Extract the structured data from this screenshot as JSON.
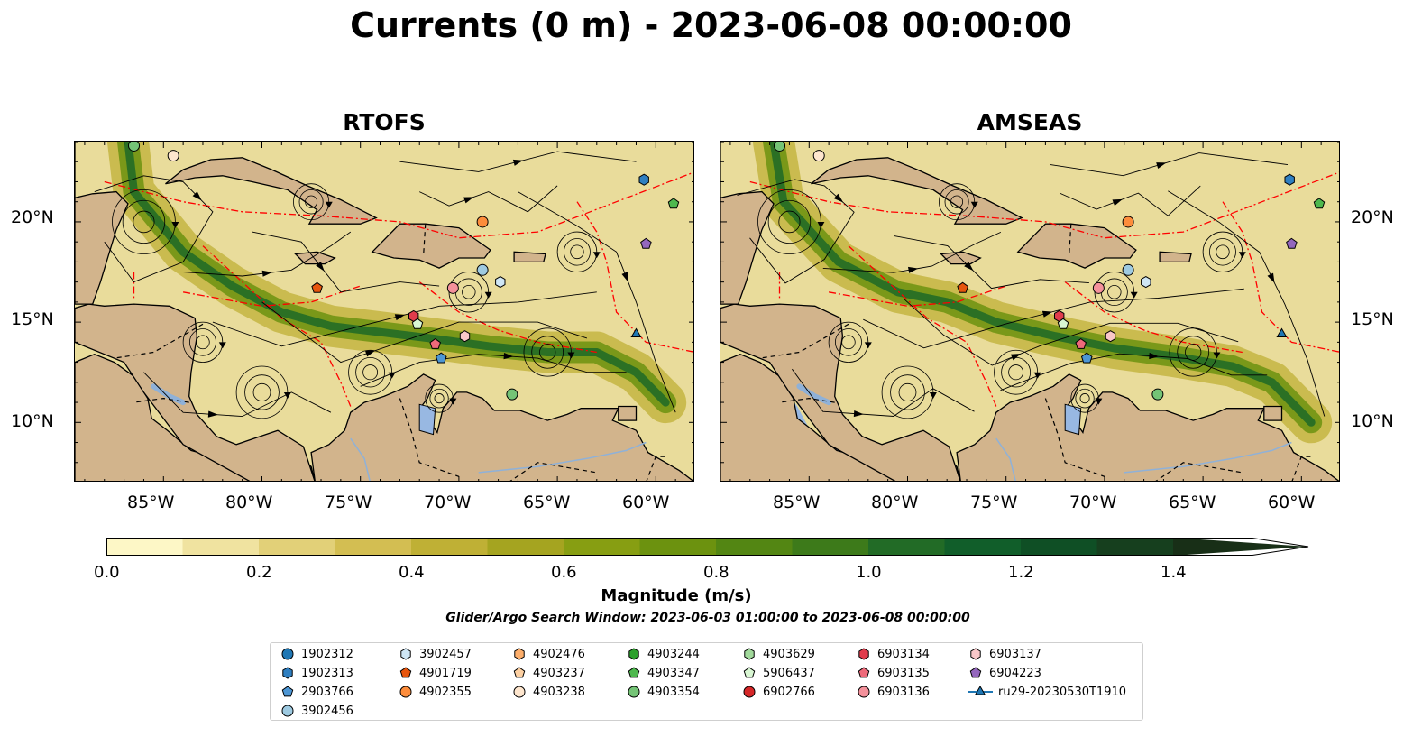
{
  "title": "Currents (0 m) - 2023-06-08 00:00:00",
  "panels": [
    {
      "title": "RTOFS"
    },
    {
      "title": "AMSEAS"
    }
  ],
  "axes": {
    "x_ticks": [
      "85°W",
      "80°W",
      "75°W",
      "70°W",
      "65°W",
      "60°W"
    ],
    "y_ticks": [
      "20°N",
      "15°N",
      "10°N"
    ],
    "lon_range": [
      -89.5,
      -58.0
    ],
    "lat_range": [
      7.0,
      24.0
    ]
  },
  "colorbar": {
    "label": "Magnitude (m/s)",
    "ticks": [
      "0.0",
      "0.2",
      "0.4",
      "0.6",
      "0.8",
      "1.0",
      "1.2",
      "1.4"
    ],
    "range": [
      0.0,
      1.5
    ],
    "extend": "max",
    "colors": [
      "#fdf7c6",
      "#f0e3a0",
      "#e2d078",
      "#d3be52",
      "#bfb035",
      "#a5a420",
      "#879e12",
      "#6c920f",
      "#538613",
      "#3d7a1a",
      "#226b26",
      "#115e2a",
      "#0f4f25",
      "#163f1e",
      "#182f17"
    ]
  },
  "search_window": "Glider/Argo Search Window: 2023-06-03 01:00:00 to 2023-06-08 00:00:00",
  "legend": [
    {
      "label": "1902312",
      "marker": "circle",
      "color": "#1f77b4"
    },
    {
      "label": "1902313",
      "marker": "hexagon",
      "color": "#2f7fc1"
    },
    {
      "label": "2903766",
      "marker": "pentagon",
      "color": "#4d96d4"
    },
    {
      "label": "3902456",
      "marker": "circle",
      "color": "#9ecae1"
    },
    {
      "label": "3902457",
      "marker": "hexagon",
      "color": "#cfe6f5"
    },
    {
      "label": "4901719",
      "marker": "pentagon",
      "color": "#e6550d"
    },
    {
      "label": "4902355",
      "marker": "circle",
      "color": "#fd8d3c"
    },
    {
      "label": "4902476",
      "marker": "hexagon",
      "color": "#fdae6b"
    },
    {
      "label": "4903237",
      "marker": "pentagon",
      "color": "#fdd0a2"
    },
    {
      "label": "4903238",
      "marker": "circle",
      "color": "#fee6ce"
    },
    {
      "label": "4903244",
      "marker": "hexagon",
      "color": "#2ca02c"
    },
    {
      "label": "4903347",
      "marker": "pentagon",
      "color": "#4eb84e"
    },
    {
      "label": "4903354",
      "marker": "circle",
      "color": "#74c476"
    },
    {
      "label": "4903629",
      "marker": "hexagon",
      "color": "#a1d99b"
    },
    {
      "label": "5906437",
      "marker": "pentagon",
      "color": "#d9f7d3"
    },
    {
      "label": "6902766",
      "marker": "circle",
      "color": "#d62728"
    },
    {
      "label": "6903134",
      "marker": "hexagon",
      "color": "#e03c4c"
    },
    {
      "label": "6903135",
      "marker": "pentagon",
      "color": "#ee6a7a"
    },
    {
      "label": "6903136",
      "marker": "circle",
      "color": "#f4919b"
    },
    {
      "label": "6903137",
      "marker": "hexagon",
      "color": "#f9c7c9"
    },
    {
      "label": "6904223",
      "marker": "pentagon",
      "color": "#9467bd"
    },
    {
      "label": "ru29-20230530T1910",
      "marker": "triangle-line",
      "color": "#1f77b4"
    }
  ],
  "floats": [
    {
      "id": "4903354",
      "lon": -86.5,
      "lat": 23.8
    },
    {
      "id": "4903238",
      "lon": -84.5,
      "lat": 23.3
    },
    {
      "id": "1902313",
      "lon": -60.6,
      "lat": 22.1
    },
    {
      "id": "4903347",
      "lon": -59.1,
      "lat": 20.9
    },
    {
      "id": "4902355",
      "lon": -68.8,
      "lat": 20.0
    },
    {
      "id": "6904223",
      "lon": -60.5,
      "lat": 18.9
    },
    {
      "id": "3902456",
      "lon": -68.8,
      "lat": 17.6
    },
    {
      "id": "3902457",
      "lon": -67.9,
      "lat": 17.0
    },
    {
      "id": "4901719",
      "lon": -77.2,
      "lat": 16.7
    },
    {
      "id": "6903136",
      "lon": -70.3,
      "lat": 16.7
    },
    {
      "id": "6903134",
      "lon": -72.3,
      "lat": 15.3
    },
    {
      "id": "5906437",
      "lon": -72.1,
      "lat": 14.9
    },
    {
      "id": "6903137",
      "lon": -69.7,
      "lat": 14.3
    },
    {
      "id": "6903135",
      "lon": -71.2,
      "lat": 13.9
    },
    {
      "id": "2903766",
      "lon": -70.9,
      "lat": 13.2
    },
    {
      "id": "4903354",
      "lon": -67.3,
      "lat": 11.4
    },
    {
      "id": "ru29-20230530T1910",
      "lon": -61.0,
      "lat": 14.4
    }
  ]
}
